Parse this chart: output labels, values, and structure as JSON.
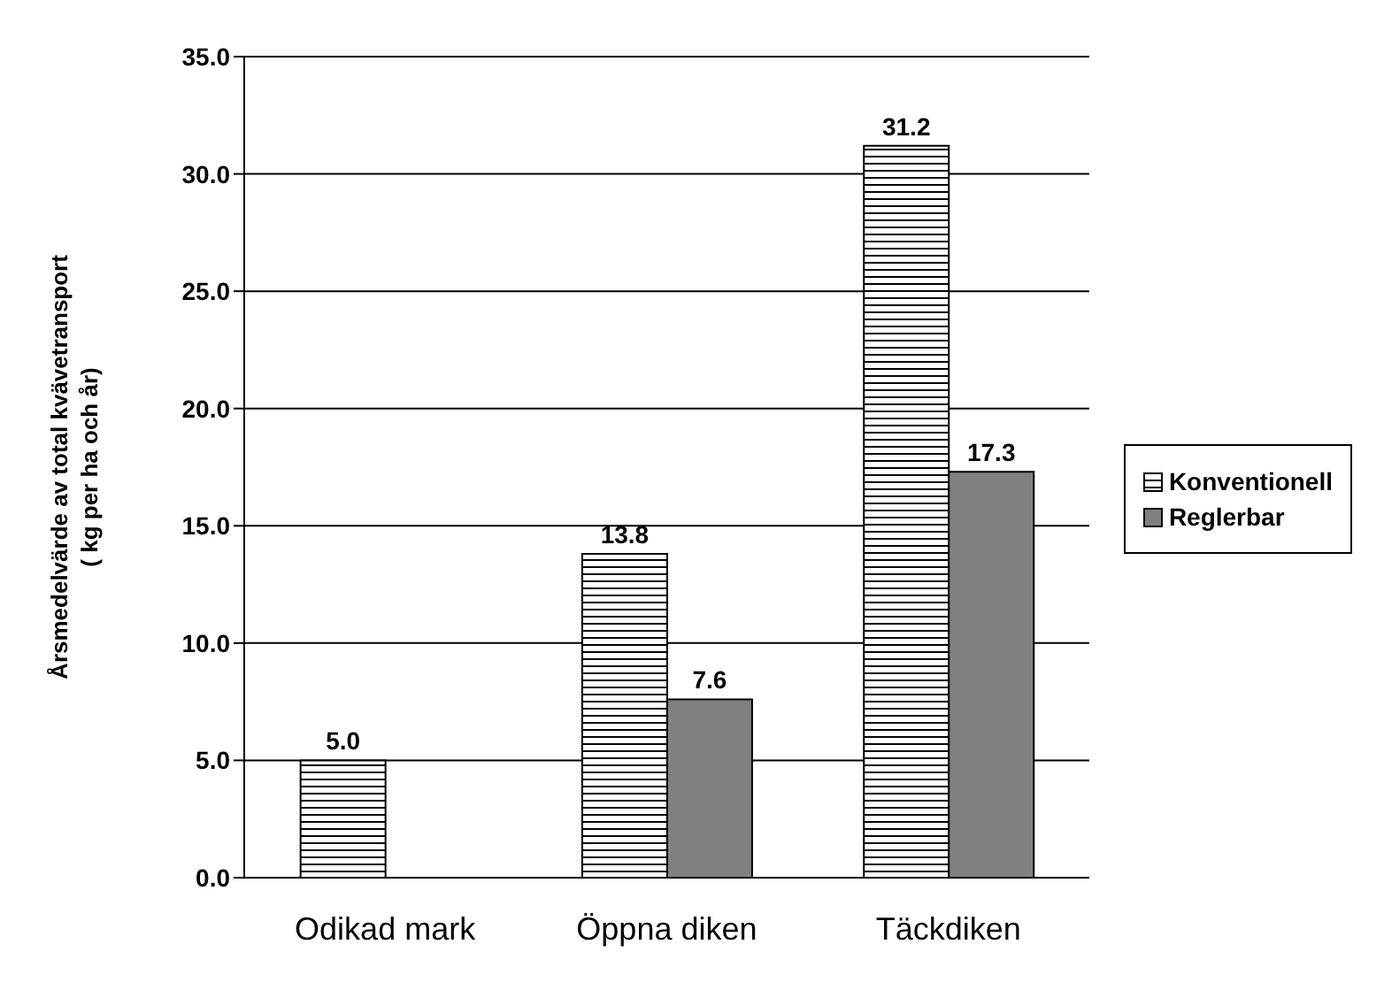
{
  "chart_data": {
    "type": "bar",
    "ylabel": "Årsmedelvärde av total kvävetransport\n( kg per ha och år)",
    "categories": [
      "Odikad mark",
      "Öppna diken",
      "Täckdiken"
    ],
    "series": [
      {
        "name": "Konventionell",
        "color": "#000000",
        "values": [
          5.0,
          13.8,
          31.2
        ],
        "value_labels": [
          "5.0",
          "13.8",
          "31.2"
        ]
      },
      {
        "name": "Reglerbar",
        "color": "#808080",
        "values": [
          null,
          7.6,
          17.3
        ],
        "value_labels": [
          null,
          "7.6",
          "17.3"
        ]
      }
    ],
    "ylim": [
      0,
      35
    ],
    "yticks": [
      {
        "value": 0,
        "label": "0.0"
      },
      {
        "value": 5,
        "label": "5.0"
      },
      {
        "value": 10,
        "label": "10.0"
      },
      {
        "value": 15,
        "label": "15.0"
      },
      {
        "value": 20,
        "label": "20.0"
      },
      {
        "value": 25,
        "label": "25.0"
      },
      {
        "value": 30,
        "label": "30.0"
      },
      {
        "value": 35,
        "label": "35.0"
      }
    ],
    "grid": "y",
    "legend": "right"
  }
}
